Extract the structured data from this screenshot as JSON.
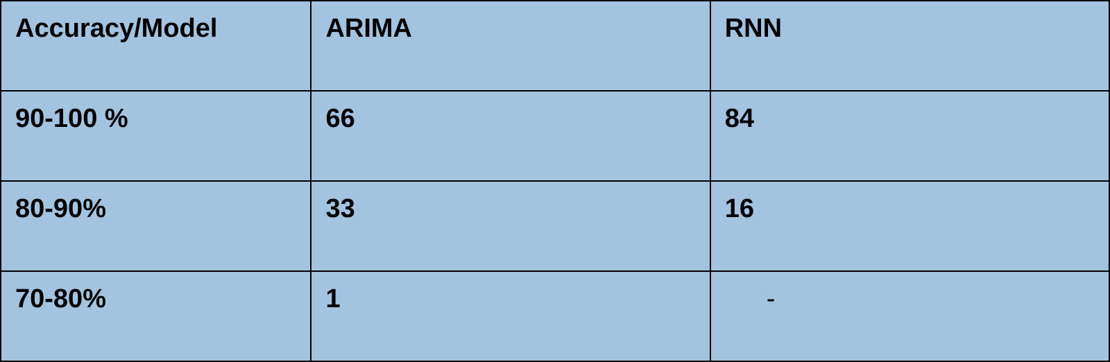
{
  "table": {
    "type": "table",
    "background_color": "#a3c4e0",
    "border_color": "#000000",
    "text_color": "#000000",
    "font_family": "Arial",
    "header_fontsize": 38,
    "cell_fontsize": 38,
    "header_fontweight": "bold",
    "cell_fontweight": "bold",
    "border_width": 2,
    "column_widths_pct": [
      28,
      36,
      36
    ],
    "columns": [
      "Accuracy/Model",
      "ARIMA",
      "RNN"
    ],
    "rows": [
      [
        "90-100 %",
        "66",
        "84"
      ],
      [
        "80-90%",
        "33",
        "16"
      ],
      [
        "70-80%",
        "1",
        "-"
      ]
    ]
  }
}
